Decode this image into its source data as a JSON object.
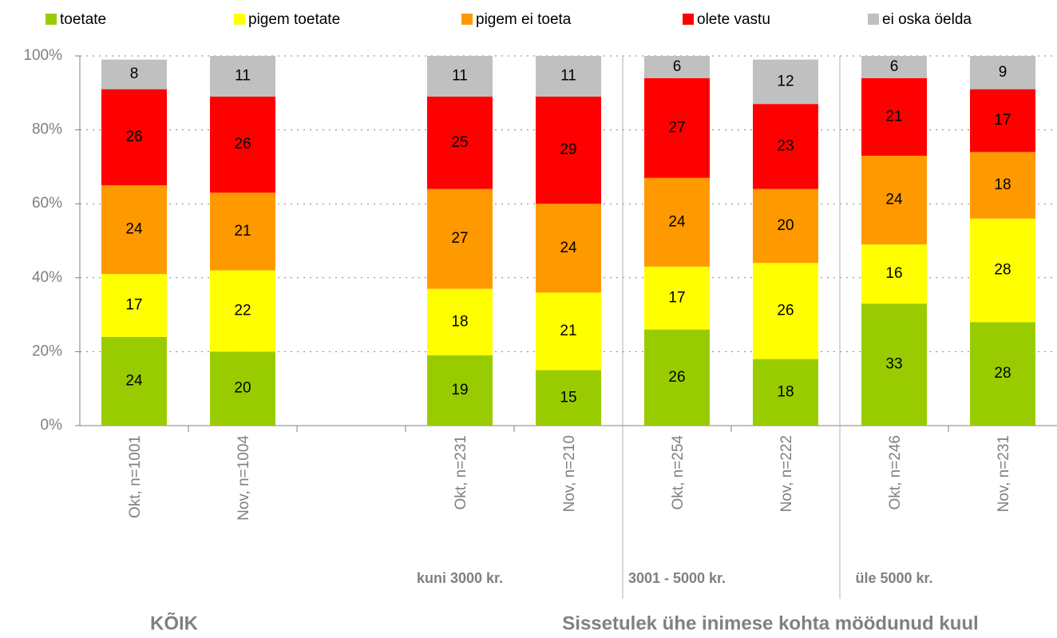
{
  "chart_data": {
    "type": "stacked_bar",
    "categories": [
      "Okt, n=1001",
      "Nov, n=1004",
      null,
      "Okt, n=231",
      "Nov, n=210",
      "Okt, n=254",
      "Nov, n=222",
      "Okt, n=246",
      "Nov, n=231"
    ],
    "series": [
      {
        "name": "toetate",
        "color": "#99cc00",
        "values": [
          24,
          20,
          null,
          19,
          15,
          26,
          18,
          33,
          28
        ]
      },
      {
        "name": "pigem toetate",
        "color": "#ffff00",
        "values": [
          17,
          22,
          null,
          18,
          21,
          17,
          26,
          16,
          28
        ]
      },
      {
        "name": "pigem ei toeta",
        "color": "#ff9900",
        "values": [
          24,
          21,
          null,
          27,
          24,
          24,
          20,
          24,
          18
        ]
      },
      {
        "name": "olete vastu",
        "color": "#ff0000",
        "values": [
          26,
          26,
          null,
          25,
          29,
          27,
          23,
          21,
          17
        ]
      },
      {
        "name": "ei oska öelda",
        "color": "#c0c0c0",
        "values": [
          8,
          11,
          null,
          11,
          11,
          6,
          12,
          6,
          9
        ]
      }
    ],
    "ylim": [
      0,
      100
    ],
    "yticks": [
      {
        "value": 0,
        "label": "0%"
      },
      {
        "value": 20,
        "label": "20%"
      },
      {
        "value": 40,
        "label": "40%"
      },
      {
        "value": 60,
        "label": "60%"
      },
      {
        "value": 80,
        "label": "80%"
      },
      {
        "value": 100,
        "label": "100%"
      }
    ],
    "grid": true,
    "legend": "top",
    "group_labels": [
      "kuni 3000 kr.",
      "3001 - 5000 kr.",
      "üle 5000 kr."
    ],
    "section_labels": [
      "KÕIK",
      "Sissetulek ühe inimese kohta möödunud kuul"
    ]
  }
}
